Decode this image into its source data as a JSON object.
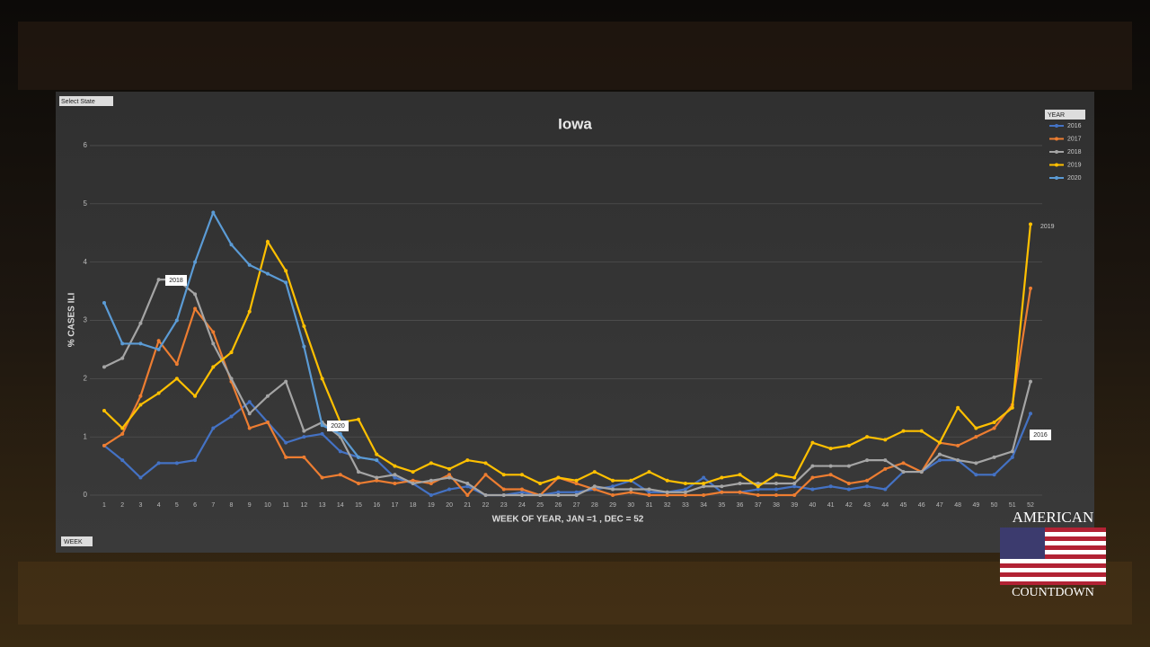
{
  "chart_data": {
    "type": "line",
    "title": "Iowa",
    "ylabel": "% CASES ILI",
    "xlabel": "WEEK OF YEAR, JAN =1 , DEC = 52",
    "x": [
      1,
      2,
      3,
      4,
      5,
      6,
      7,
      8,
      9,
      10,
      11,
      12,
      13,
      14,
      15,
      16,
      17,
      18,
      19,
      20,
      21,
      22,
      23,
      24,
      25,
      26,
      27,
      28,
      29,
      30,
      31,
      32,
      33,
      34,
      35,
      36,
      37,
      38,
      39,
      40,
      41,
      42,
      43,
      44,
      45,
      46,
      47,
      48,
      49,
      50,
      51,
      52
    ],
    "xlim": [
      1,
      52
    ],
    "xticks": [
      1,
      2,
      3,
      4,
      5,
      6,
      7,
      8,
      9,
      10,
      11,
      12,
      13,
      14,
      15,
      16,
      17,
      18,
      19,
      20,
      21,
      22,
      23,
      24,
      25,
      26,
      27,
      28,
      29,
      30,
      31,
      32,
      33,
      34,
      35,
      36,
      37,
      38,
      39,
      40,
      41,
      42,
      43,
      44,
      45,
      46,
      47,
      48,
      49,
      50,
      51,
      52
    ],
    "ylim": [
      0,
      6
    ],
    "yticks": [
      0,
      1,
      2,
      3,
      4,
      5,
      6
    ],
    "grid": true,
    "series": [
      {
        "name": "2016",
        "color": "#4472c4",
        "values": [
          0.85,
          0.6,
          0.3,
          0.55,
          0.55,
          0.6,
          1.15,
          1.35,
          1.6,
          1.25,
          0.9,
          1.0,
          1.05,
          0.75,
          0.65,
          0.6,
          0.3,
          0.2,
          0.0,
          0.1,
          0.15,
          0.0,
          0.0,
          0.05,
          0.0,
          0.05,
          0.05,
          0.1,
          0.15,
          0.25,
          0.05,
          0.05,
          0.1,
          0.3,
          0.05,
          0.05,
          0.1,
          0.1,
          0.15,
          0.1,
          0.15,
          0.1,
          0.15,
          0.1,
          0.4,
          0.4,
          0.6,
          0.6,
          0.35,
          0.35,
          0.65,
          1.4
        ]
      },
      {
        "name": "2017",
        "color": "#ed7d31",
        "values": [
          0.85,
          1.05,
          1.7,
          2.65,
          2.25,
          3.2,
          2.8,
          1.95,
          1.15,
          1.25,
          0.65,
          0.65,
          0.3,
          0.35,
          0.2,
          0.25,
          0.2,
          0.25,
          0.2,
          0.35,
          0.0,
          0.35,
          0.1,
          0.1,
          0.0,
          0.3,
          0.2,
          0.1,
          0.0,
          0.05,
          0.0,
          0.0,
          0.0,
          0.0,
          0.05,
          0.05,
          0.0,
          0.0,
          0.0,
          0.3,
          0.35,
          0.2,
          0.25,
          0.45,
          0.55,
          0.4,
          0.9,
          0.85,
          1.0,
          1.15,
          1.55,
          3.55
        ]
      },
      {
        "name": "2018",
        "color": "#a5a5a5",
        "values": [
          2.2,
          2.35,
          2.95,
          3.7,
          3.7,
          3.45,
          2.6,
          2.0,
          1.4,
          1.7,
          1.95,
          1.1,
          1.25,
          1.0,
          0.4,
          0.3,
          0.35,
          0.2,
          0.25,
          0.3,
          0.2,
          0.0,
          0.0,
          0.0,
          0.0,
          0.0,
          0.0,
          0.15,
          0.1,
          0.1,
          0.1,
          0.05,
          0.05,
          0.15,
          0.15,
          0.2,
          0.2,
          0.2,
          0.2,
          0.5,
          0.5,
          0.5,
          0.6,
          0.6,
          0.4,
          0.4,
          0.7,
          0.6,
          0.55,
          0.65,
          0.75,
          1.95
        ]
      },
      {
        "name": "2019",
        "color": "#ffc000",
        "values": [
          1.45,
          1.15,
          1.55,
          1.75,
          2.0,
          1.7,
          2.2,
          2.45,
          3.15,
          4.35,
          3.85,
          2.9,
          2.0,
          1.25,
          1.3,
          0.7,
          0.5,
          0.4,
          0.55,
          0.45,
          0.6,
          0.55,
          0.35,
          0.35,
          0.2,
          0.3,
          0.25,
          0.4,
          0.25,
          0.25,
          0.4,
          0.25,
          0.2,
          0.2,
          0.3,
          0.35,
          0.15,
          0.35,
          0.3,
          0.9,
          0.8,
          0.85,
          1.0,
          0.95,
          1.1,
          1.1,
          0.9,
          1.5,
          1.15,
          1.25,
          1.5,
          4.65
        ]
      },
      {
        "name": "2020",
        "color": "#5b9bd5",
        "values": [
          3.3,
          2.6,
          2.6,
          2.5,
          3.0,
          4.0,
          4.85,
          4.3,
          3.95,
          3.8,
          3.65,
          2.55,
          1.2,
          1.05,
          0.65,
          0.6,
          null,
          null,
          null,
          null,
          null,
          null,
          null,
          null,
          null,
          null,
          null,
          null,
          null,
          null,
          null,
          null,
          null,
          null,
          null,
          null,
          null,
          null,
          null,
          null,
          null,
          null,
          null,
          null,
          null,
          null,
          null,
          null,
          null,
          null,
          null,
          null
        ]
      }
    ],
    "annotations": [
      "2018",
      "2020",
      "2019",
      "2016"
    ],
    "filters": {
      "state": "Select State",
      "year": "YEAR",
      "week": "WEEK"
    }
  },
  "overlay": {
    "top": "AMERICAN",
    "bottom": "COUNTDOWN"
  }
}
